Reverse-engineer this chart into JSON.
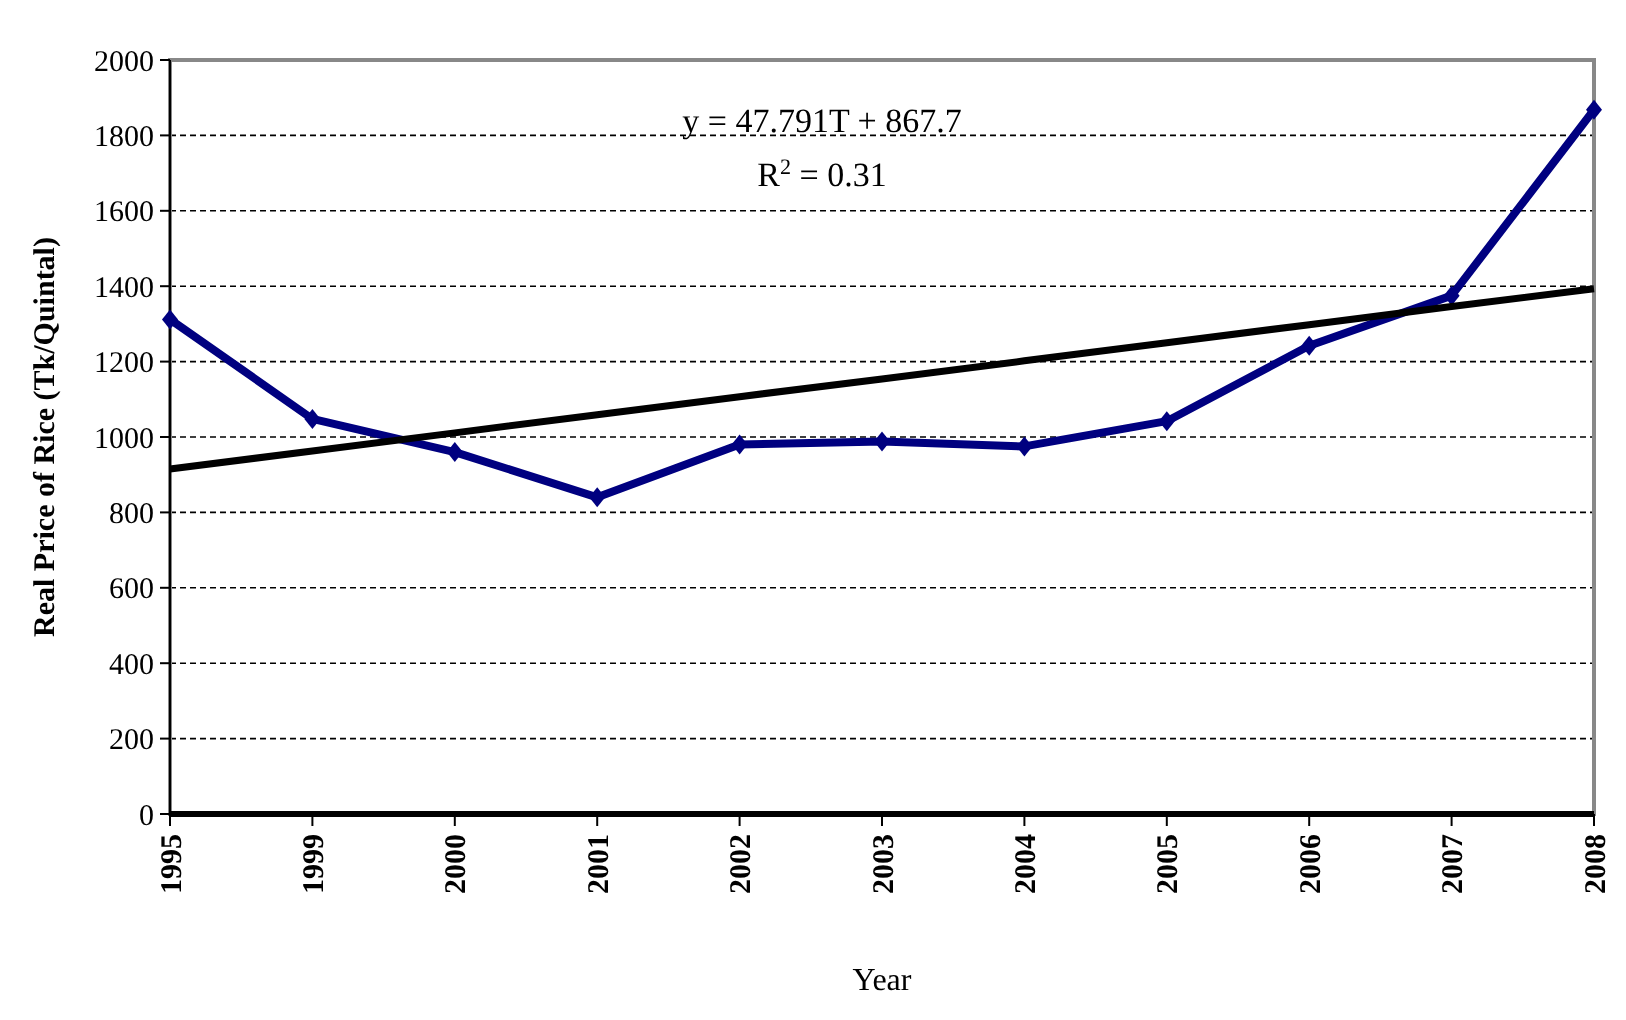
{
  "chart_data": {
    "type": "line",
    "xlabel": "Year",
    "ylabel": "Real Price of Rice (Tk/Quintal)",
    "categories": [
      "1995",
      "1999",
      "2000",
      "2001",
      "2002",
      "2003",
      "2004",
      "2005",
      "2006",
      "2007",
      "2008"
    ],
    "series": [
      {
        "color": "#000080",
        "values": [
          1312,
          1048,
          960,
          840,
          980,
          988,
          975,
          1042,
          1242,
          1375,
          1868
        ],
        "marker": "diamond"
      },
      {
        "type": "line",
        "color": "#000000",
        "values": [
          915,
          963,
          1011,
          1059,
          1107,
          1154,
          1202,
          1250,
          1298,
          1346,
          1393
        ],
        "marker": "none"
      }
    ],
    "ylim": [
      0,
      2000
    ],
    "yticks": [
      0,
      200,
      400,
      600,
      800,
      1000,
      1200,
      1400,
      1600,
      1800,
      2000
    ],
    "grid": "y",
    "annotations": [
      "y = 47.791T + 867.7",
      "R$^{2}$ = 0.31"
    ]
  }
}
